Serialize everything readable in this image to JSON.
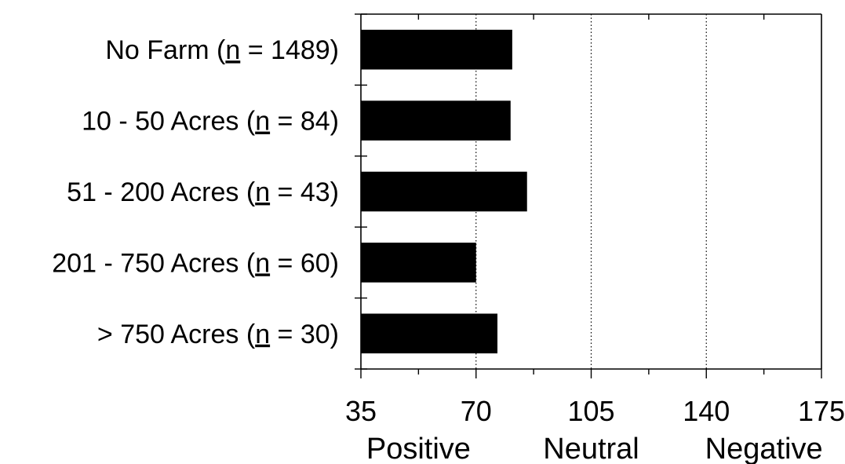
{
  "chart_data": {
    "type": "bar",
    "orientation": "horizontal",
    "categories": [
      {
        "prefix": "No Farm (",
        "n_symbol": "n",
        "suffix": " = 1489)"
      },
      {
        "prefix": "10 - 50 Acres (",
        "n_symbol": "n",
        "suffix": " = 84)"
      },
      {
        "prefix": "51 - 200 Acres (",
        "n_symbol": "n",
        "suffix": " = 43)"
      },
      {
        "prefix": "201 - 750 Acres (",
        "n_symbol": "n",
        "suffix": " = 60)"
      },
      {
        "prefix": "> 750 Acres (",
        "n_symbol": "n",
        "suffix": " = 30)"
      }
    ],
    "values": [
      81,
      80.5,
      85.5,
      70,
      76.5
    ],
    "xlim": [
      35,
      175
    ],
    "xticks": [
      "35",
      "70",
      "105",
      "140",
      "175"
    ],
    "x_tick_values": [
      35,
      70,
      105,
      140,
      175
    ],
    "x_anchor_labels": [
      {
        "text": "Positive",
        "at": 52.5
      },
      {
        "text": "Neutral",
        "at": 105
      },
      {
        "text": "Negative",
        "at": 157.5
      }
    ],
    "gridlines": "dotted vertical at major ticks",
    "bar_color": "#000000",
    "title": "",
    "xlabel": "",
    "ylabel": ""
  }
}
